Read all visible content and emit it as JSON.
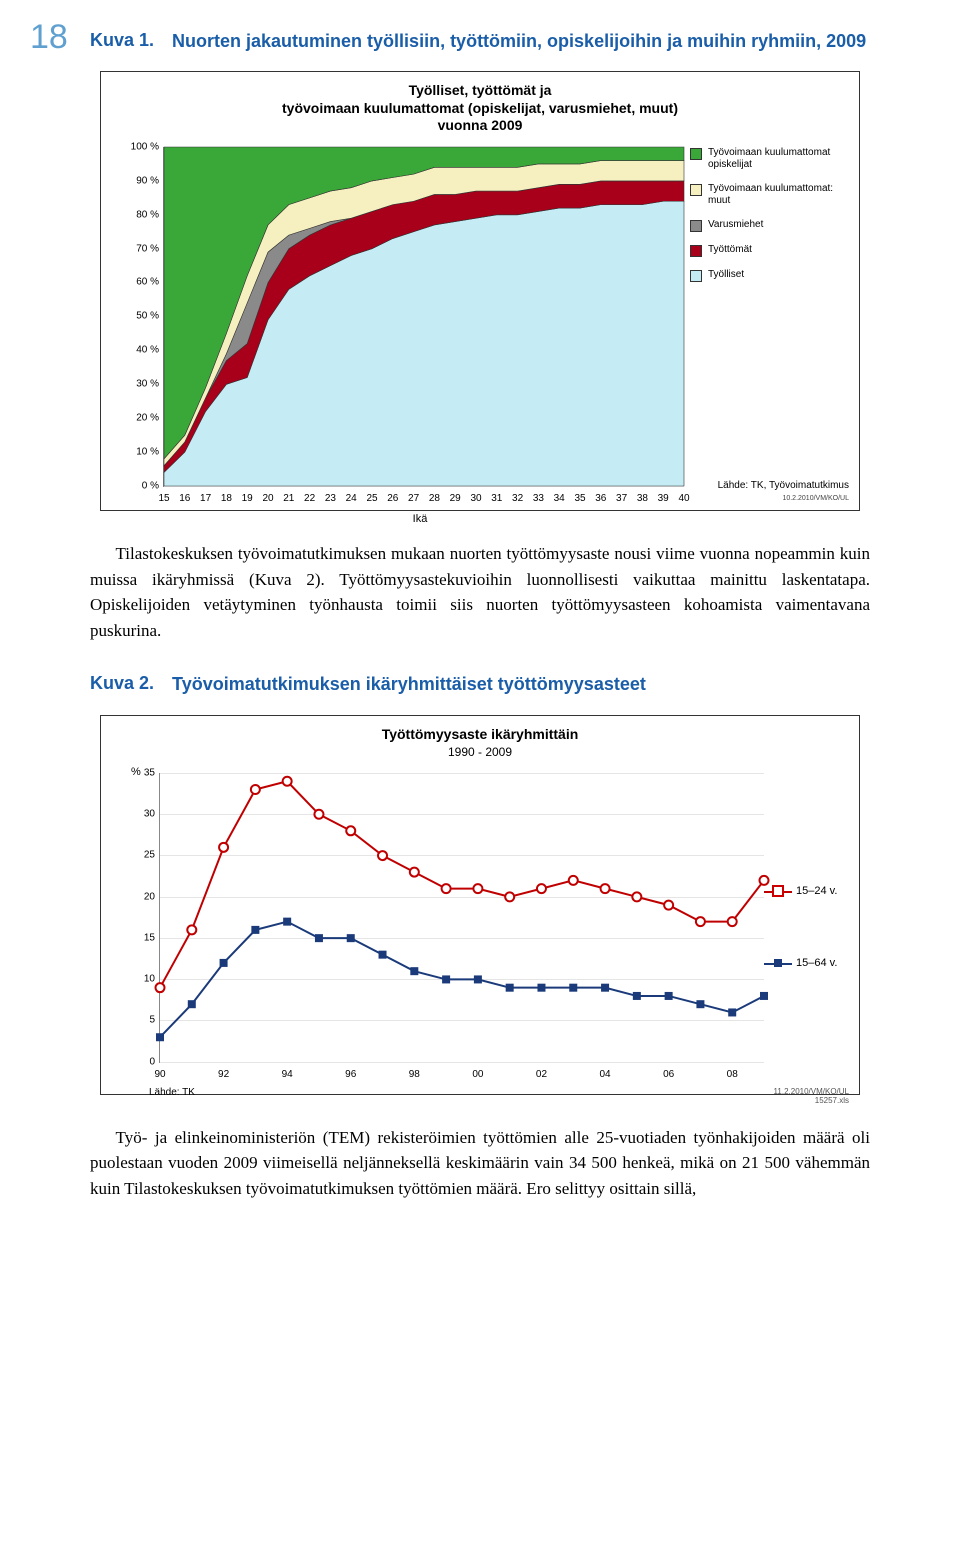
{
  "page_number": "18",
  "kuva1": {
    "label": "Kuva 1.",
    "caption": "Nuorten jakautuminen työllisiin, työttömiin, opiskelijoihin ja muihin ryhmiin, 2009",
    "chart_title_line1": "Työlliset, työttömät ja",
    "chart_title_line2": "työvoimaan kuulumattomat (opiskelijat, varusmiehet, muut)",
    "chart_title_line3": "vuonna 2009",
    "ylabel_suffix": " %",
    "yticks": [
      0,
      10,
      20,
      30,
      40,
      50,
      60,
      70,
      80,
      90,
      100
    ],
    "xticks": [
      15,
      16,
      17,
      18,
      19,
      20,
      21,
      22,
      23,
      24,
      25,
      26,
      27,
      28,
      29,
      30,
      31,
      32,
      33,
      34,
      35,
      36,
      37,
      38,
      39,
      40
    ],
    "xaxis_label": "Ikä",
    "series": {
      "tyolliset": {
        "color": "#c5ecf5",
        "values": [
          4,
          10,
          22,
          30,
          32,
          49,
          58,
          62,
          65,
          68,
          70,
          73,
          75,
          77,
          78,
          79,
          80,
          80,
          81,
          82,
          82,
          83,
          83,
          83,
          84,
          84
        ]
      },
      "tyottomat": {
        "color": "#a8001a",
        "values": [
          2,
          3,
          4,
          7,
          10,
          11,
          12,
          12,
          12,
          11,
          11,
          10,
          9,
          9,
          8,
          8,
          7,
          7,
          7,
          7,
          7,
          7,
          7,
          7,
          6,
          6
        ]
      },
      "varusmiehet": {
        "color": "#8a8a8a",
        "values": [
          0,
          0,
          0,
          2,
          12,
          9,
          4,
          2,
          1,
          0,
          0,
          0,
          0,
          0,
          0,
          0,
          0,
          0,
          0,
          0,
          0,
          0,
          0,
          0,
          0,
          0
        ]
      },
      "muut": {
        "color": "#f6f0c0",
        "values": [
          2,
          2,
          3,
          6,
          8,
          8,
          9,
          9,
          9,
          9,
          9,
          8,
          8,
          8,
          8,
          7,
          7,
          7,
          7,
          6,
          6,
          6,
          6,
          6,
          6,
          6
        ]
      },
      "opiskelijat": {
        "color": "#3aa838",
        "values": [
          92,
          85,
          71,
          55,
          38,
          23,
          17,
          15,
          13,
          12,
          10,
          9,
          8,
          6,
          6,
          6,
          6,
          6,
          5,
          5,
          5,
          4,
          4,
          4,
          4,
          4
        ]
      }
    },
    "legend": [
      {
        "label": "Työvoimaan kuulumattomat opiskelijat",
        "color": "#3aa838"
      },
      {
        "label": "Työvoimaan kuulumattomat: muut",
        "color": "#f6f0c0"
      },
      {
        "label": "Varusmiehet",
        "color": "#8a8a8a"
      },
      {
        "label": "Työttömät",
        "color": "#a8001a"
      },
      {
        "label": "Työlliset",
        "color": "#c5ecf5"
      }
    ],
    "source_line1": "Lähde: TK, Työvoimatutkimus",
    "source_line2": "10.2.2010/VM/KO/UL"
  },
  "para1": "Tilastokeskuksen työvoimatutkimuksen mukaan nuorten työttömyysaste nousi viime vuonna nopeammin kuin muissa ikäryhmissä (Kuva 2). Työttömyysastekuvioihin luonnollisesti vaikuttaa mainittu laskentatapa. Opiskelijoiden vetäytyminen työnhausta toimii siis nuorten työttömyysasteen kohoamista vaimentavana puskurina.",
  "kuva2": {
    "label": "Kuva 2.",
    "caption": "Työvoimatutkimuksen ikäryhmittäiset työttömyysasteet",
    "chart_title_line1": "Työttömyysaste ikäryhmittäin",
    "chart_title_line2": "1990 - 2009",
    "yaxis_label": "%",
    "yticks": [
      0,
      5,
      10,
      15,
      20,
      25,
      30,
      35
    ],
    "xticks": [
      "90",
      "92",
      "94",
      "96",
      "98",
      "00",
      "02",
      "04",
      "06",
      "08"
    ],
    "years": [
      90,
      91,
      92,
      93,
      94,
      95,
      96,
      97,
      98,
      99,
      0,
      1,
      2,
      3,
      4,
      5,
      6,
      7,
      8,
      9
    ],
    "series": {
      "s15_24": {
        "color": "#c00000",
        "marker": "circle-open",
        "values": [
          9,
          16,
          26,
          33,
          34,
          30,
          28,
          25,
          23,
          21,
          21,
          20,
          21,
          22,
          21,
          20,
          19,
          17,
          17,
          22
        ]
      },
      "s15_64": {
        "color": "#1a3a7a",
        "marker": "square",
        "values": [
          3,
          7,
          12,
          16,
          17,
          15,
          15,
          13,
          11,
          10,
          10,
          9,
          9,
          9,
          9,
          8,
          8,
          7,
          6,
          8
        ]
      }
    },
    "legend": [
      {
        "label": "15–24 v.",
        "key": "s15_24",
        "style": "red"
      },
      {
        "label": "15–64 v.",
        "key": "s15_64",
        "style": "blue"
      }
    ],
    "source_left": "Lähde: TK",
    "source_right_line1": "11.2.2010/VM/KO/UL",
    "source_right_line2": "15257.xls"
  },
  "para2": "Työ- ja elinkeinoministeriön (TEM) rekisteröimien työttömien alle 25-vuotiaden työnhakijoiden määrä oli puolestaan vuoden 2009 viimeisellä neljänneksellä keskimäärin vain 34 500 henkeä, mikä on 21 500 vähemmän kuin Tilastokeskuksen työvoimatutkimuksen työttömien määrä. Ero selittyy osittain sillä,"
}
